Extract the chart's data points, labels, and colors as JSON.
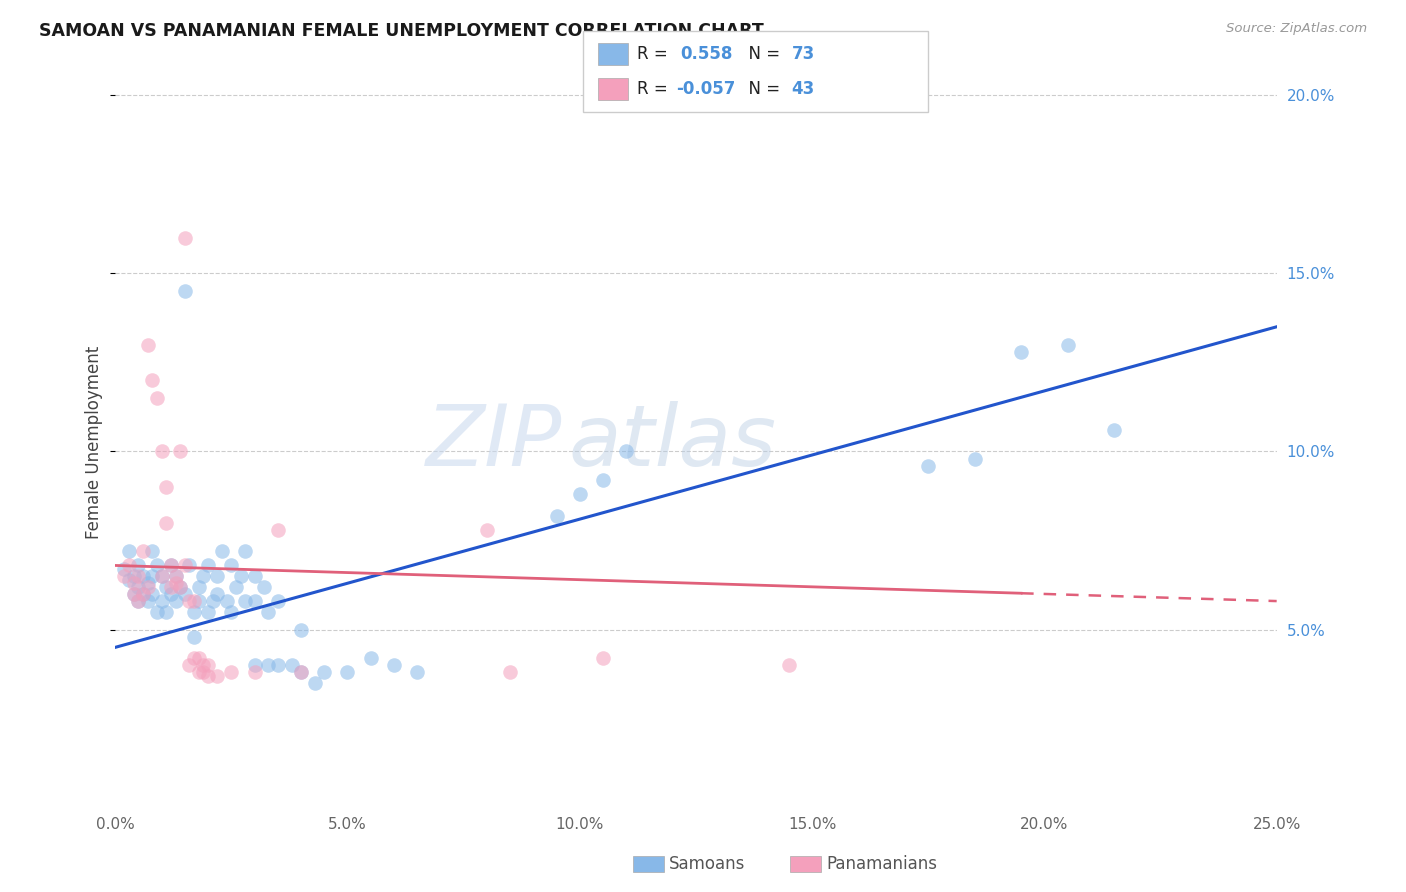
{
  "title": "SAMOAN VS PANAMANIAN FEMALE UNEMPLOYMENT CORRELATION CHART",
  "source": "Source: ZipAtlas.com",
  "ylabel": "Female Unemployment",
  "xmin": 0.0,
  "xmax": 0.25,
  "ymin": 0.0,
  "ymax": 0.205,
  "yticks": [
    0.05,
    0.1,
    0.15,
    0.2
  ],
  "xticks": [
    0.0,
    0.05,
    0.1,
    0.15,
    0.2,
    0.25
  ],
  "xtick_labels": [
    "0.0%",
    "5.0%",
    "10.0%",
    "15.0%",
    "20.0%",
    "25.0%"
  ],
  "ytick_labels_right": [
    "5.0%",
    "10.0%",
    "15.0%",
    "20.0%"
  ],
  "samoan_color": "#88b8e8",
  "panamanian_color": "#f4a0bc",
  "regression_samoan_color": "#2255cc",
  "regression_panamanian_color": "#e0607a",
  "background_color": "#ffffff",
  "grid_color": "#cccccc",
  "r_samoan": "0.558",
  "n_samoan": "73",
  "r_panamanian": "-0.057",
  "n_panamanian": "43",
  "samoan_label": "Samoans",
  "panamanian_label": "Panamanians",
  "regression_blue_x0": 0.0,
  "regression_blue_y0": 0.045,
  "regression_blue_x1": 0.25,
  "regression_blue_y1": 0.135,
  "regression_pink_x0": 0.0,
  "regression_pink_y0": 0.068,
  "regression_pink_x1": 0.25,
  "regression_pink_y1": 0.058,
  "regression_pink_solid_end": 0.195,
  "samoan_points": [
    [
      0.002,
      0.067
    ],
    [
      0.003,
      0.064
    ],
    [
      0.003,
      0.072
    ],
    [
      0.004,
      0.06
    ],
    [
      0.004,
      0.065
    ],
    [
      0.005,
      0.068
    ],
    [
      0.005,
      0.062
    ],
    [
      0.005,
      0.058
    ],
    [
      0.006,
      0.065
    ],
    [
      0.006,
      0.06
    ],
    [
      0.007,
      0.063
    ],
    [
      0.007,
      0.058
    ],
    [
      0.008,
      0.072
    ],
    [
      0.008,
      0.065
    ],
    [
      0.008,
      0.06
    ],
    [
      0.009,
      0.068
    ],
    [
      0.009,
      0.055
    ],
    [
      0.01,
      0.065
    ],
    [
      0.01,
      0.058
    ],
    [
      0.011,
      0.062
    ],
    [
      0.011,
      0.055
    ],
    [
      0.012,
      0.068
    ],
    [
      0.012,
      0.06
    ],
    [
      0.013,
      0.065
    ],
    [
      0.013,
      0.058
    ],
    [
      0.014,
      0.062
    ],
    [
      0.015,
      0.145
    ],
    [
      0.015,
      0.06
    ],
    [
      0.016,
      0.068
    ],
    [
      0.017,
      0.048
    ],
    [
      0.017,
      0.055
    ],
    [
      0.018,
      0.062
    ],
    [
      0.018,
      0.058
    ],
    [
      0.019,
      0.065
    ],
    [
      0.02,
      0.068
    ],
    [
      0.02,
      0.055
    ],
    [
      0.021,
      0.058
    ],
    [
      0.022,
      0.065
    ],
    [
      0.022,
      0.06
    ],
    [
      0.023,
      0.072
    ],
    [
      0.024,
      0.058
    ],
    [
      0.025,
      0.068
    ],
    [
      0.025,
      0.055
    ],
    [
      0.026,
      0.062
    ],
    [
      0.027,
      0.065
    ],
    [
      0.028,
      0.058
    ],
    [
      0.028,
      0.072
    ],
    [
      0.03,
      0.065
    ],
    [
      0.03,
      0.058
    ],
    [
      0.03,
      0.04
    ],
    [
      0.032,
      0.062
    ],
    [
      0.033,
      0.04
    ],
    [
      0.033,
      0.055
    ],
    [
      0.035,
      0.04
    ],
    [
      0.035,
      0.058
    ],
    [
      0.038,
      0.04
    ],
    [
      0.04,
      0.038
    ],
    [
      0.04,
      0.05
    ],
    [
      0.043,
      0.035
    ],
    [
      0.045,
      0.038
    ],
    [
      0.05,
      0.038
    ],
    [
      0.055,
      0.042
    ],
    [
      0.06,
      0.04
    ],
    [
      0.065,
      0.038
    ],
    [
      0.095,
      0.082
    ],
    [
      0.1,
      0.088
    ],
    [
      0.105,
      0.092
    ],
    [
      0.11,
      0.1
    ],
    [
      0.175,
      0.096
    ],
    [
      0.185,
      0.098
    ],
    [
      0.195,
      0.128
    ],
    [
      0.205,
      0.13
    ],
    [
      0.215,
      0.106
    ]
  ],
  "panamanian_points": [
    [
      0.002,
      0.065
    ],
    [
      0.003,
      0.068
    ],
    [
      0.004,
      0.06
    ],
    [
      0.004,
      0.063
    ],
    [
      0.005,
      0.065
    ],
    [
      0.005,
      0.058
    ],
    [
      0.006,
      0.072
    ],
    [
      0.006,
      0.06
    ],
    [
      0.007,
      0.13
    ],
    [
      0.007,
      0.062
    ],
    [
      0.008,
      0.12
    ],
    [
      0.009,
      0.115
    ],
    [
      0.01,
      0.1
    ],
    [
      0.01,
      0.065
    ],
    [
      0.011,
      0.08
    ],
    [
      0.011,
      0.09
    ],
    [
      0.012,
      0.062
    ],
    [
      0.012,
      0.068
    ],
    [
      0.013,
      0.063
    ],
    [
      0.013,
      0.065
    ],
    [
      0.014,
      0.1
    ],
    [
      0.014,
      0.062
    ],
    [
      0.015,
      0.16
    ],
    [
      0.015,
      0.068
    ],
    [
      0.016,
      0.058
    ],
    [
      0.016,
      0.04
    ],
    [
      0.017,
      0.042
    ],
    [
      0.017,
      0.058
    ],
    [
      0.018,
      0.038
    ],
    [
      0.018,
      0.042
    ],
    [
      0.019,
      0.038
    ],
    [
      0.019,
      0.04
    ],
    [
      0.02,
      0.04
    ],
    [
      0.02,
      0.037
    ],
    [
      0.022,
      0.037
    ],
    [
      0.025,
      0.038
    ],
    [
      0.03,
      0.038
    ],
    [
      0.035,
      0.078
    ],
    [
      0.04,
      0.038
    ],
    [
      0.08,
      0.078
    ],
    [
      0.085,
      0.038
    ],
    [
      0.105,
      0.042
    ],
    [
      0.145,
      0.04
    ]
  ]
}
